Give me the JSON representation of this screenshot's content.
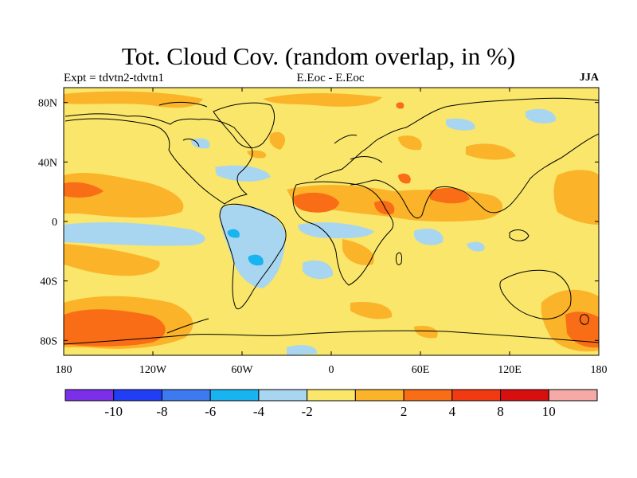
{
  "title": "Tot. Cloud Cov. (random overlap, in %)",
  "subtitle_left": "Expt = tdvtn2-tdvtn1",
  "subtitle_center": "E.Eoc - E.Eoc",
  "subtitle_right": "JJA",
  "map": {
    "projection": "equirectangular",
    "lon_range": [
      -180,
      180
    ],
    "lat_range": [
      -90,
      90
    ],
    "background_level_color": "#f9e66a",
    "coastline_color": "#000000",
    "lon_ticks": [
      {
        "value": -180,
        "label": "180"
      },
      {
        "value": -120,
        "label": "120W"
      },
      {
        "value": -60,
        "label": "60W"
      },
      {
        "value": 0,
        "label": "0"
      },
      {
        "value": 60,
        "label": "60E"
      },
      {
        "value": 120,
        "label": "120E"
      },
      {
        "value": 180,
        "label": "180"
      }
    ],
    "lat_ticks": [
      {
        "value": 80,
        "label": "80N"
      },
      {
        "value": 40,
        "label": "40N"
      },
      {
        "value": 0,
        "label": "0"
      },
      {
        "value": -40,
        "label": "40S"
      },
      {
        "value": -80,
        "label": "80S"
      }
    ]
  },
  "colorbar": {
    "colors": [
      "#7b2fe8",
      "#1f3ef5",
      "#3d7af0",
      "#18b4f0",
      "#a8d6f0",
      "#f9e66a",
      "#fbb329",
      "#f96d16",
      "#f23a12",
      "#d80f0f",
      "#f5aaa8"
    ],
    "labels": [
      "-10",
      "-8",
      "-6",
      "-4",
      "-2",
      "2",
      "4",
      "8",
      "10"
    ]
  }
}
